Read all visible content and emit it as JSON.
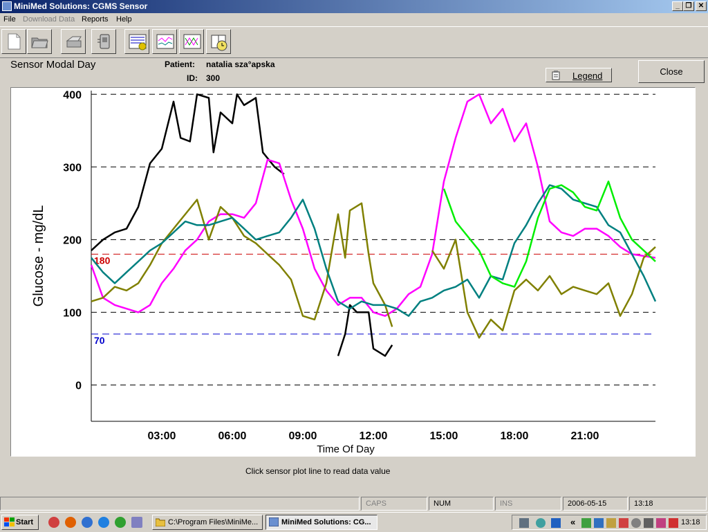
{
  "window": {
    "title": "MiniMed Solutions: CGMS Sensor"
  },
  "menu": [
    "File",
    "Download Data",
    "Reports",
    "Help"
  ],
  "menu_disabled": [
    false,
    true,
    false,
    false
  ],
  "toolbar": {
    "icons": [
      "new-document-icon",
      "open-folder-icon",
      "print-icon",
      "download-device-icon",
      "modal-day-report-icon",
      "overlay-graph-icon",
      "daily-trend-graph-icon",
      "book-clock-icon"
    ]
  },
  "header": {
    "title": "Sensor Modal Day",
    "patient_label": "Patient:",
    "patient_value": "natalia sza°apska",
    "id_label": "ID:",
    "id_value": "300",
    "legend_label": "Legend",
    "close_label": "Close"
  },
  "hint": "Click sensor plot line to read data value",
  "status": {
    "caps": "CAPS",
    "num": "NUM",
    "ins": "INS",
    "date": "2006-05-15",
    "time": "13:18"
  },
  "taskbar": {
    "start": "Start",
    "tasks": [
      "C:\\Program Files\\MiniMe...",
      "MiniMed Solutions: CG..."
    ],
    "clock": "13:18"
  },
  "chart_data": {
    "type": "line",
    "ylabel": "Glucose - mg/dL",
    "xlabel": "Time Of Day",
    "ylim": [
      -50,
      405
    ],
    "xlim": [
      0,
      24
    ],
    "yticks": [
      0,
      100,
      200,
      300,
      400
    ],
    "ytick_labels": [
      "0",
      "100",
      "200",
      "300",
      "400"
    ],
    "xticks": [
      3,
      6,
      9,
      12,
      15,
      18,
      21
    ],
    "xtick_labels": [
      "03:00",
      "06:00",
      "09:00",
      "12:00",
      "15:00",
      "18:00",
      "21:00"
    ],
    "grid": "horizontal-dashed",
    "thresholds": [
      {
        "value": 180,
        "label": "180",
        "color": "#cc0000"
      },
      {
        "value": 70,
        "label": "70",
        "color": "#0000cc"
      }
    ],
    "series": [
      {
        "color": "#000000",
        "segments": [
          [
            [
              0,
              185
            ],
            [
              0.5,
              200
            ],
            [
              1,
              210
            ],
            [
              1.5,
              215
            ],
            [
              2,
              245
            ],
            [
              2.5,
              305
            ],
            [
              3,
              325
            ],
            [
              3.5,
              390
            ],
            [
              3.8,
              340
            ],
            [
              4.2,
              335
            ],
            [
              4.5,
              400
            ],
            [
              5,
              395
            ],
            [
              5.2,
              320
            ],
            [
              5.5,
              375
            ],
            [
              6,
              360
            ],
            [
              6.2,
              400
            ],
            [
              6.5,
              385
            ],
            [
              7,
              395
            ],
            [
              7.3,
              320
            ],
            [
              7.8,
              300
            ],
            [
              8.2,
              290
            ]
          ],
          [
            [
              10.5,
              40
            ],
            [
              10.8,
              70
            ],
            [
              11,
              110
            ],
            [
              11.3,
              100
            ],
            [
              11.8,
              100
            ],
            [
              12,
              50
            ],
            [
              12.5,
              40
            ],
            [
              12.8,
              55
            ]
          ]
        ]
      },
      {
        "color": "#ff00ff",
        "segments": [
          [
            [
              0,
              165
            ],
            [
              0.5,
              120
            ],
            [
              1,
              110
            ],
            [
              2,
              100
            ],
            [
              2.5,
              110
            ],
            [
              3,
              140
            ],
            [
              3.5,
              160
            ],
            [
              4,
              185
            ],
            [
              4.5,
              200
            ],
            [
              5,
              225
            ],
            [
              5.5,
              235
            ],
            [
              6,
              235
            ],
            [
              6.5,
              230
            ],
            [
              7,
              250
            ],
            [
              7.5,
              310
            ],
            [
              8,
              305
            ],
            [
              8.5,
              255
            ],
            [
              9,
              215
            ],
            [
              9.5,
              160
            ],
            [
              10,
              130
            ],
            [
              10.5,
              110
            ],
            [
              11,
              120
            ],
            [
              11.5,
              120
            ],
            [
              12,
              100
            ],
            [
              12.5,
              95
            ],
            [
              13,
              105
            ],
            [
              13.5,
              125
            ],
            [
              14,
              135
            ],
            [
              14.5,
              180
            ],
            [
              15,
              280
            ],
            [
              15.5,
              340
            ],
            [
              16,
              390
            ],
            [
              16.5,
              400
            ],
            [
              17,
              360
            ],
            [
              17.5,
              380
            ],
            [
              18,
              335
            ],
            [
              18.5,
              360
            ],
            [
              19,
              300
            ],
            [
              19.5,
              225
            ],
            [
              20,
              210
            ],
            [
              20.5,
              205
            ],
            [
              21,
              215
            ],
            [
              21.5,
              215
            ],
            [
              22,
              205
            ],
            [
              22.5,
              190
            ],
            [
              23,
              180
            ],
            [
              24,
              175
            ]
          ]
        ]
      },
      {
        "color": "#808000",
        "segments": [
          [
            [
              0,
              115
            ],
            [
              0.5,
              120
            ],
            [
              1,
              135
            ],
            [
              1.5,
              130
            ],
            [
              2,
              140
            ],
            [
              2.5,
              165
            ],
            [
              3,
              195
            ],
            [
              3.5,
              215
            ],
            [
              4,
              235
            ],
            [
              4.5,
              255
            ],
            [
              5,
              200
            ],
            [
              5.5,
              245
            ],
            [
              6,
              230
            ],
            [
              6.5,
              205
            ],
            [
              7,
              195
            ],
            [
              7.5,
              180
            ],
            [
              8,
              165
            ],
            [
              8.5,
              145
            ],
            [
              9,
              95
            ],
            [
              9.5,
              90
            ],
            [
              10,
              140
            ],
            [
              10.5,
              235
            ],
            [
              10.8,
              175
            ],
            [
              11,
              240
            ],
            [
              11.5,
              250
            ],
            [
              11.8,
              180
            ],
            [
              12,
              140
            ],
            [
              12.5,
              110
            ],
            [
              12.8,
              80
            ]
          ],
          [
            [
              14.5,
              185
            ],
            [
              15,
              160
            ],
            [
              15.5,
              200
            ],
            [
              16,
              100
            ],
            [
              16.5,
              65
            ],
            [
              17,
              90
            ],
            [
              17.5,
              75
            ],
            [
              18,
              130
            ],
            [
              18.5,
              145
            ],
            [
              19,
              130
            ],
            [
              19.5,
              150
            ],
            [
              20,
              125
            ],
            [
              20.5,
              135
            ],
            [
              21,
              130
            ],
            [
              21.5,
              125
            ],
            [
              22,
              140
            ],
            [
              22.5,
              95
            ],
            [
              23,
              125
            ],
            [
              23.5,
              175
            ],
            [
              24,
              190
            ]
          ]
        ]
      },
      {
        "color": "#008080",
        "segments": [
          [
            [
              0,
              175
            ],
            [
              0.5,
              155
            ],
            [
              1,
              140
            ],
            [
              1.5,
              155
            ],
            [
              2,
              170
            ],
            [
              2.5,
              185
            ],
            [
              3,
              195
            ],
            [
              3.5,
              210
            ],
            [
              4,
              225
            ],
            [
              4.5,
              220
            ],
            [
              5,
              220
            ],
            [
              5.5,
              225
            ],
            [
              6,
              230
            ],
            [
              6.5,
              215
            ],
            [
              7,
              200
            ],
            [
              7.5,
              205
            ],
            [
              8,
              210
            ],
            [
              8.5,
              230
            ],
            [
              9,
              255
            ],
            [
              9.5,
              215
            ],
            [
              10,
              160
            ],
            [
              10.5,
              115
            ],
            [
              11,
              105
            ],
            [
              11.5,
              115
            ],
            [
              12,
              110
            ],
            [
              12.5,
              110
            ],
            [
              13,
              105
            ],
            [
              13.5,
              95
            ],
            [
              14,
              115
            ],
            [
              14.5,
              120
            ],
            [
              15,
              130
            ],
            [
              15.5,
              135
            ],
            [
              16,
              145
            ],
            [
              16.5,
              120
            ],
            [
              17,
              150
            ],
            [
              17.5,
              145
            ],
            [
              18,
              195
            ],
            [
              18.5,
              220
            ],
            [
              19,
              250
            ],
            [
              19.5,
              275
            ],
            [
              20,
              270
            ],
            [
              20.5,
              255
            ],
            [
              21,
              250
            ],
            [
              21.5,
              245
            ],
            [
              22,
              220
            ],
            [
              22.5,
              210
            ],
            [
              23,
              180
            ],
            [
              23.5,
              150
            ],
            [
              24,
              115
            ]
          ]
        ]
      },
      {
        "color": "#00ee00",
        "segments": [
          [
            [
              15,
              270
            ],
            [
              15.5,
              225
            ],
            [
              16,
              205
            ],
            [
              16.5,
              185
            ],
            [
              17,
              150
            ],
            [
              17.5,
              140
            ],
            [
              18,
              135
            ],
            [
              18.5,
              170
            ],
            [
              19,
              230
            ],
            [
              19.5,
              270
            ],
            [
              20,
              275
            ],
            [
              20.5,
              265
            ],
            [
              21,
              245
            ],
            [
              21.5,
              240
            ],
            [
              22,
              280
            ],
            [
              22.5,
              230
            ],
            [
              23,
              200
            ],
            [
              23.5,
              185
            ],
            [
              24,
              170
            ]
          ]
        ]
      }
    ]
  }
}
